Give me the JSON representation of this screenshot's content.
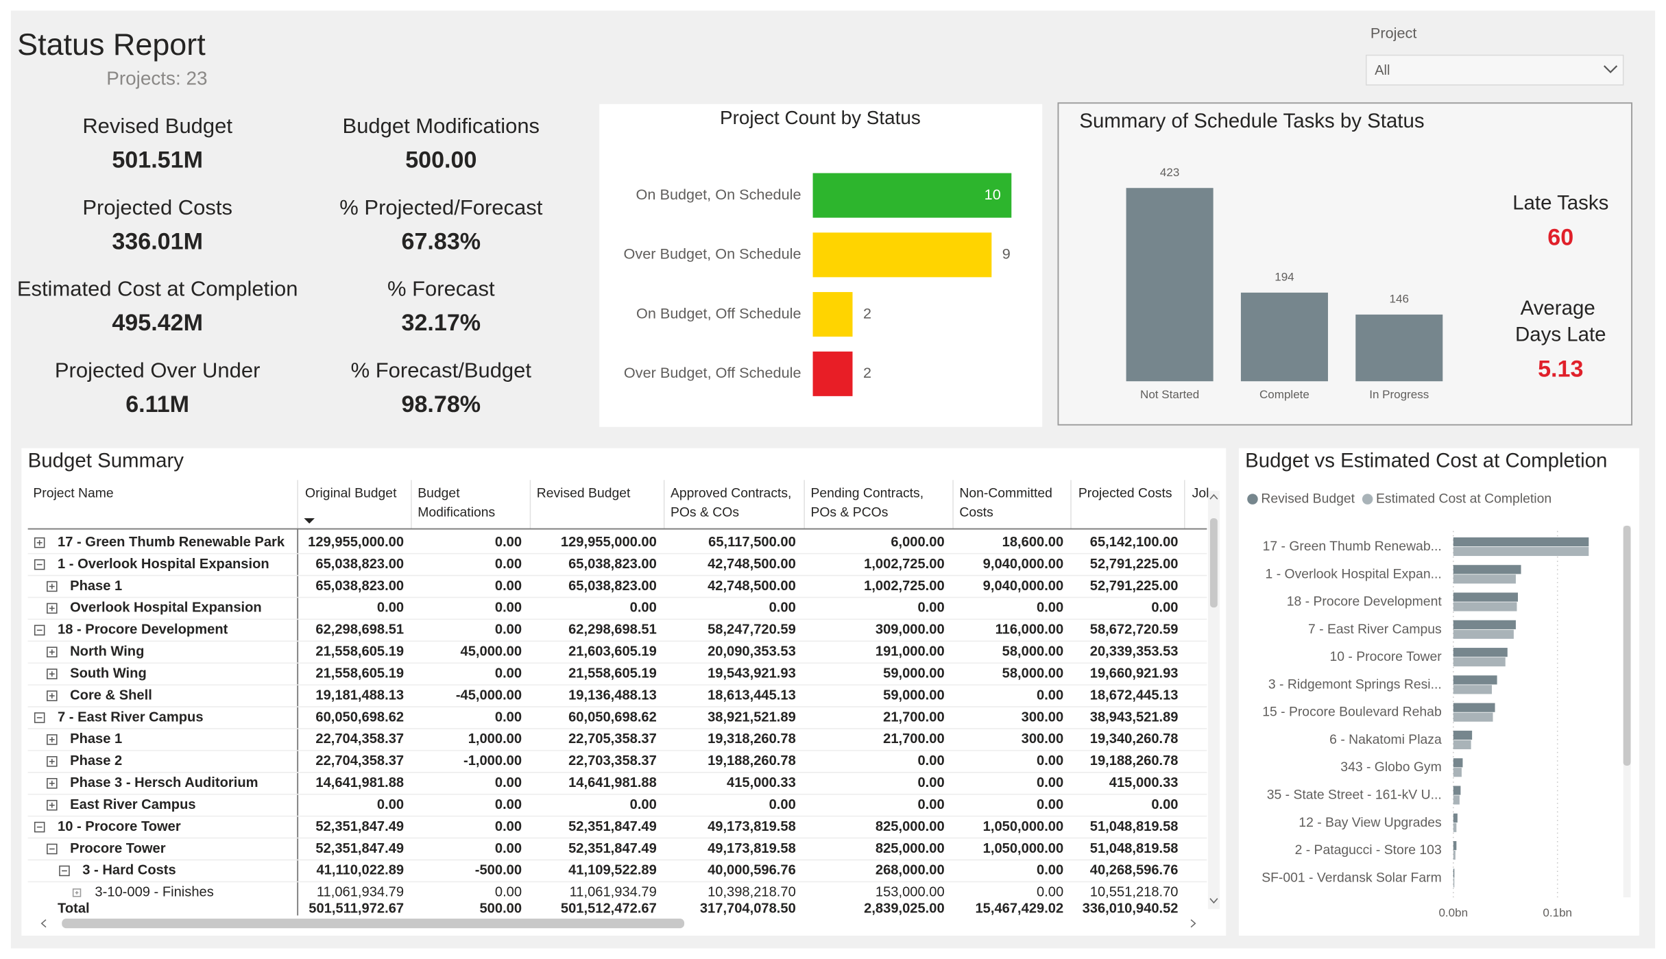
{
  "header": {
    "title": "Status Report",
    "subtitle": "Projects: 23"
  },
  "filter": {
    "label": "Project",
    "value": "All"
  },
  "kpis": [
    {
      "label": "Revised Budget",
      "value": "501.51M"
    },
    {
      "label": "Budget Modifications",
      "value": "500.00"
    },
    {
      "label": "Projected Costs",
      "value": "336.01M"
    },
    {
      "label": "% Projected/Forecast",
      "value": "67.83%"
    },
    {
      "label": "Estimated Cost at Completion",
      "value": "495.42M"
    },
    {
      "label": "% Forecast",
      "value": "32.17%"
    },
    {
      "label": "Projected Over Under",
      "value": "6.11M"
    },
    {
      "label": "% Forecast/Budget",
      "value": "98.78%"
    }
  ],
  "schedule_kpis": {
    "value_color": "#E0202A",
    "items": [
      {
        "label": "Late Tasks",
        "value": 60
      },
      {
        "label": "Average Days Late",
        "value": 5.13
      }
    ]
  },
  "chart_data": [
    {
      "type": "hbar",
      "title": "Project Count by Status",
      "categories": [
        "On Budget, On Schedule",
        "Over Budget, On Schedule",
        "On Budget, Off Schedule",
        "Over Budget, Off Schedule"
      ],
      "values": [
        10,
        9,
        2,
        2
      ],
      "colors": [
        "#2DB52D",
        "#FFD400",
        "#FFD400",
        "#E81E26"
      ]
    },
    {
      "type": "bar",
      "title": "Summary of Schedule Tasks by Status",
      "categories": [
        "Not Started",
        "Complete",
        "In Progress"
      ],
      "values": [
        423,
        194,
        146
      ],
      "color": "#76868D"
    },
    {
      "type": "grouped_hbar",
      "title": "Budget vs Estimated Cost at Completion",
      "categories": [
        "17 - Green Thumb Renewab...",
        "1 - Overlook Hospital Expan...",
        "18 - Procore Development",
        "7 - East River Campus",
        "10 - Procore Tower",
        "3 - Ridgemont Springs Resi...",
        "15 - Procore Boulevard Rehab",
        "6 - Nakatomi Plaza",
        "343 - Globo Gym",
        "35 - State Street - 161-kV U...",
        "12 - Bay View Upgrades",
        "2 - Patagucci - Store 103",
        "SF-001 - Verdansk Solar Farm"
      ],
      "series": [
        {
          "name": "Revised Budget",
          "color": "#76868D",
          "values": [
            0.13,
            0.065,
            0.062,
            0.06,
            0.052,
            0.042,
            0.04,
            0.018,
            0.009,
            0.007,
            0.004,
            0.003,
            0.001
          ]
        },
        {
          "name": "Estimated Cost at Completion",
          "color": "#A9B3B8",
          "values": [
            0.13,
            0.06,
            0.061,
            0.058,
            0.05,
            0.037,
            0.038,
            0.017,
            0.008,
            0.006,
            0.003,
            0.002,
            0.001
          ]
        }
      ],
      "xlim": [
        0,
        0.155
      ],
      "xticks": [
        {
          "value": 0,
          "label": "0.0bn"
        },
        {
          "value": 0.1,
          "label": "0.1bn"
        }
      ],
      "grid": true
    }
  ],
  "table": {
    "title": "Budget Summary",
    "columns": [
      "Project Name",
      "Original Budget",
      "Budget Modifications",
      "Revised Budget",
      "Approved Contracts, POs & COs",
      "Pending Contracts, POs & PCOs",
      "Non-Committed Costs",
      "Projected Costs",
      "Jol"
    ],
    "rows": [
      {
        "name": "17 - Green Thumb Renewable Park",
        "level": 0,
        "expanded": false,
        "cells": [
          "129,955,000.00",
          "0.00",
          "129,955,000.00",
          "65,117,500.00",
          "6,000.00",
          "18,600.00",
          "65,142,100.00"
        ]
      },
      {
        "name": "1 - Overlook Hospital Expansion",
        "level": 0,
        "expanded": true,
        "cells": [
          "65,038,823.00",
          "0.00",
          "65,038,823.00",
          "42,748,500.00",
          "1,002,725.00",
          "9,040,000.00",
          "52,791,225.00"
        ]
      },
      {
        "name": "Phase 1",
        "level": 1,
        "expanded": false,
        "cells": [
          "65,038,823.00",
          "0.00",
          "65,038,823.00",
          "42,748,500.00",
          "1,002,725.00",
          "9,040,000.00",
          "52,791,225.00"
        ]
      },
      {
        "name": "Overlook Hospital Expansion",
        "level": 1,
        "expanded": false,
        "cells": [
          "0.00",
          "0.00",
          "0.00",
          "0.00",
          "0.00",
          "0.00",
          "0.00"
        ]
      },
      {
        "name": "18 - Procore Development",
        "level": 0,
        "expanded": true,
        "cells": [
          "62,298,698.51",
          "0.00",
          "62,298,698.51",
          "58,247,720.59",
          "309,000.00",
          "116,000.00",
          "58,672,720.59"
        ]
      },
      {
        "name": "North Wing",
        "level": 1,
        "expanded": false,
        "cells": [
          "21,558,605.19",
          "45,000.00",
          "21,603,605.19",
          "20,090,353.53",
          "191,000.00",
          "58,000.00",
          "20,339,353.53"
        ]
      },
      {
        "name": "South Wing",
        "level": 1,
        "expanded": false,
        "cells": [
          "21,558,605.19",
          "0.00",
          "21,558,605.19",
          "19,543,921.93",
          "59,000.00",
          "58,000.00",
          "19,660,921.93"
        ]
      },
      {
        "name": "Core & Shell",
        "level": 1,
        "expanded": false,
        "cells": [
          "19,181,488.13",
          "-45,000.00",
          "19,136,488.13",
          "18,613,445.13",
          "59,000.00",
          "0.00",
          "18,672,445.13"
        ]
      },
      {
        "name": "7 - East River Campus",
        "level": 0,
        "expanded": true,
        "cells": [
          "60,050,698.62",
          "0.00",
          "60,050,698.62",
          "38,921,521.89",
          "21,700.00",
          "300.00",
          "38,943,521.89"
        ]
      },
      {
        "name": "Phase 1",
        "level": 1,
        "expanded": false,
        "cells": [
          "22,704,358.37",
          "1,000.00",
          "22,705,358.37",
          "19,318,260.78",
          "21,700.00",
          "300.00",
          "19,340,260.78"
        ]
      },
      {
        "name": "Phase 2",
        "level": 1,
        "expanded": false,
        "cells": [
          "22,704,358.37",
          "-1,000.00",
          "22,703,358.37",
          "19,188,260.78",
          "0.00",
          "0.00",
          "19,188,260.78"
        ]
      },
      {
        "name": "Phase 3 - Hersch Auditorium",
        "level": 1,
        "expanded": false,
        "cells": [
          "14,641,981.88",
          "0.00",
          "14,641,981.88",
          "415,000.33",
          "0.00",
          "0.00",
          "415,000.33"
        ]
      },
      {
        "name": "East River Campus",
        "level": 1,
        "expanded": false,
        "cells": [
          "0.00",
          "0.00",
          "0.00",
          "0.00",
          "0.00",
          "0.00",
          "0.00"
        ]
      },
      {
        "name": "10 - Procore Tower",
        "level": 0,
        "expanded": true,
        "cells": [
          "52,351,847.49",
          "0.00",
          "52,351,847.49",
          "49,173,819.58",
          "825,000.00",
          "1,050,000.00",
          "51,048,819.58"
        ]
      },
      {
        "name": "Procore Tower",
        "level": 1,
        "expanded": true,
        "cells": [
          "52,351,847.49",
          "0.00",
          "52,351,847.49",
          "49,173,819.58",
          "825,000.00",
          "1,050,000.00",
          "51,048,819.58"
        ]
      },
      {
        "name": "3 - Hard Costs",
        "level": 2,
        "expanded": true,
        "cells": [
          "41,110,022.89",
          "-500.00",
          "41,109,522.89",
          "40,000,596.76",
          "268,000.00",
          "0.00",
          "40,268,596.76"
        ]
      },
      {
        "name": "3-10-009 - Finishes",
        "level": 3,
        "expanded": false,
        "cells": [
          "11,061,934.79",
          "0.00",
          "11,061,934.79",
          "10,398,218.70",
          "153,000.00",
          "0.00",
          "10,551,218.70"
        ]
      }
    ],
    "total": {
      "name": "Total",
      "cells": [
        "501,511,972.67",
        "500.00",
        "501,512,472.67",
        "317,704,078.50",
        "2,839,025.00",
        "15,467,429.02",
        "336,010,940.52"
      ]
    }
  }
}
